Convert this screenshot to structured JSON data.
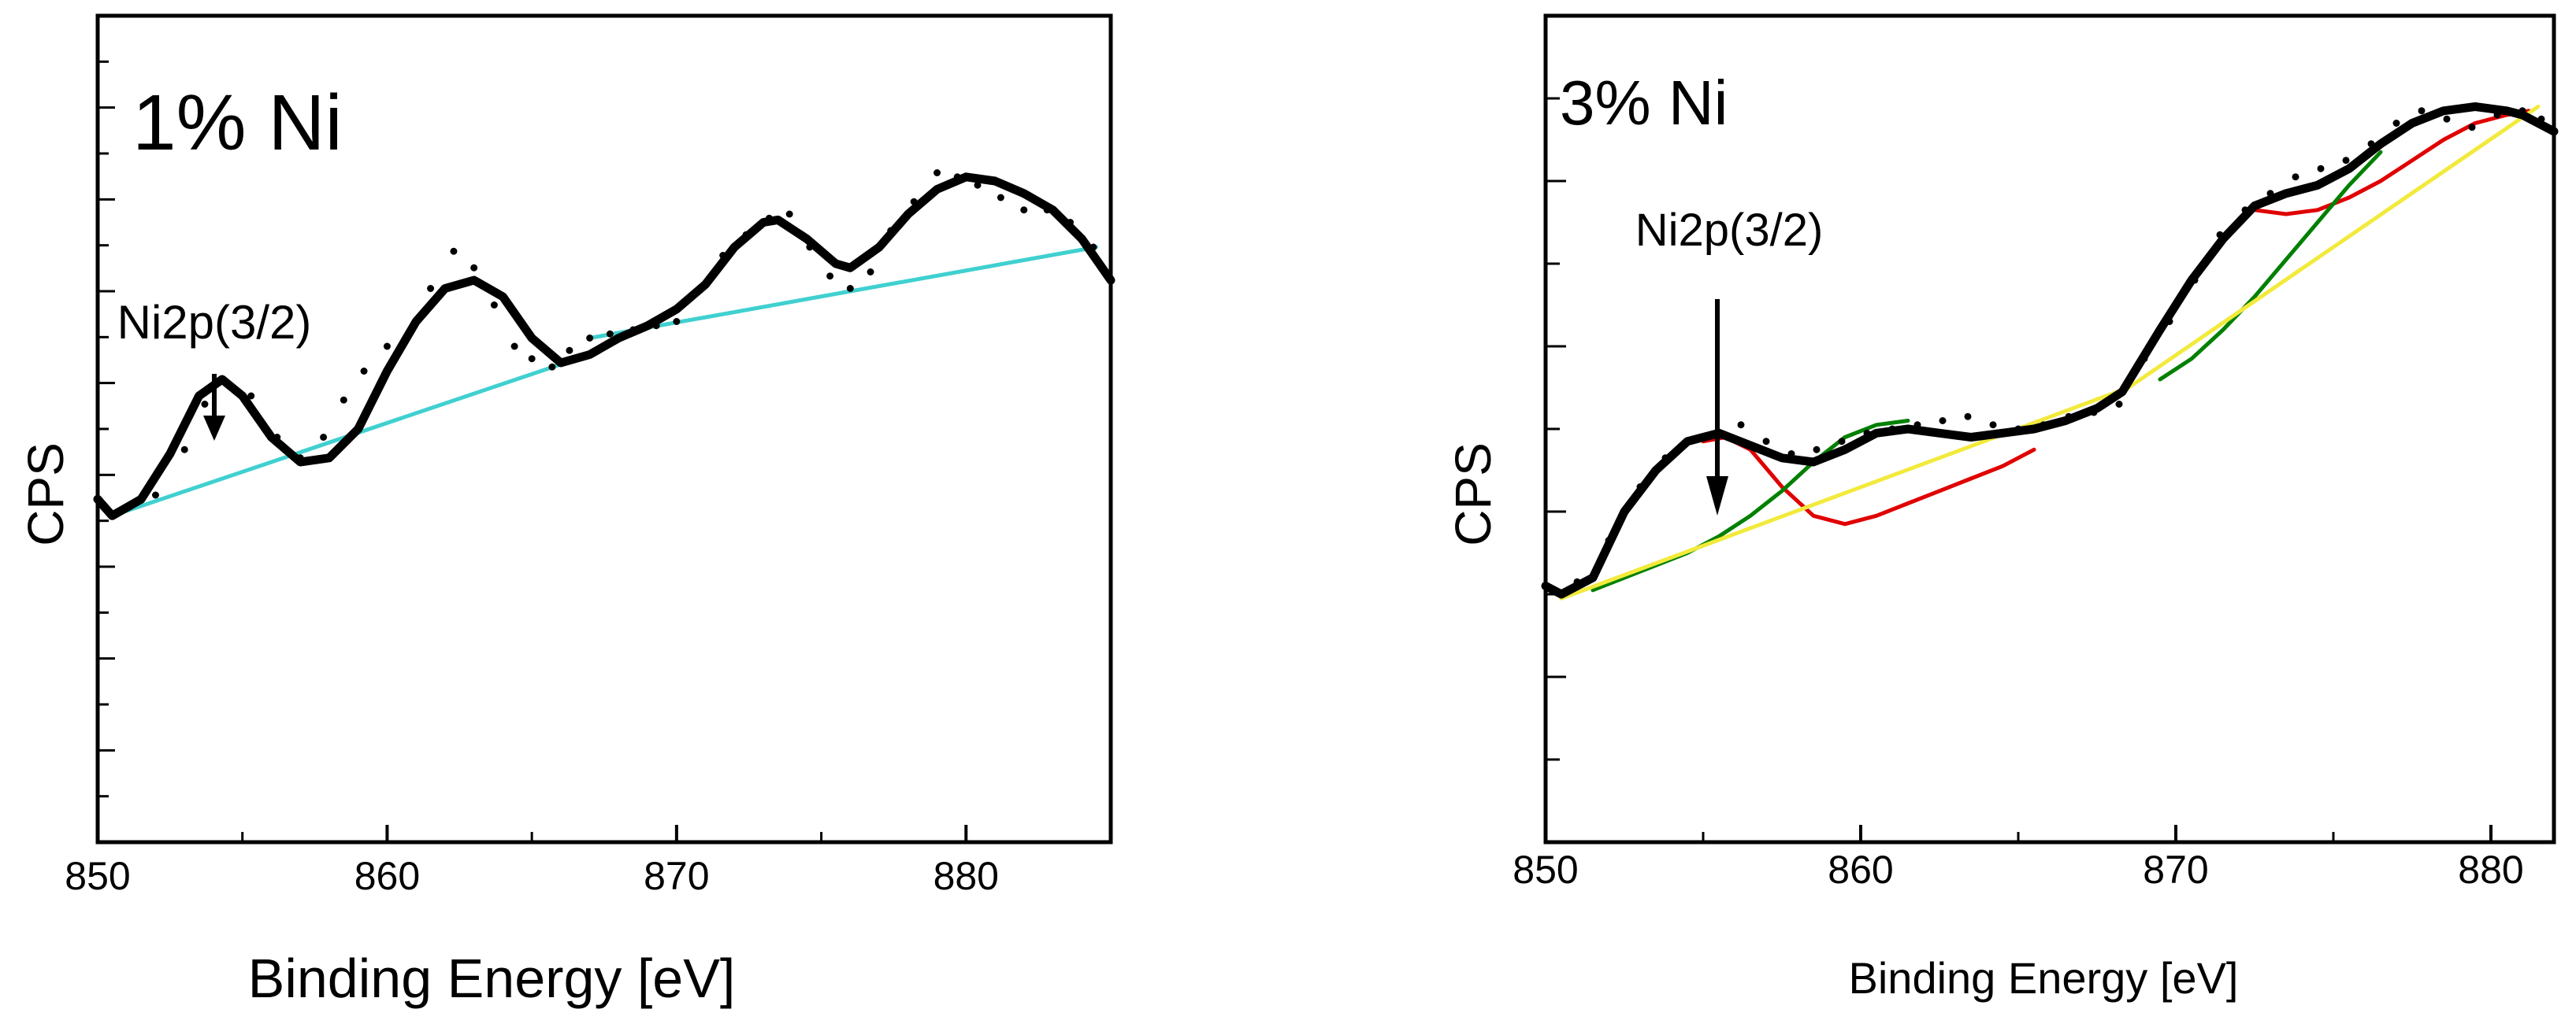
{
  "chart_data": [
    {
      "type": "line",
      "title": "1% Ni",
      "xlabel": "Binding Energy [eV]",
      "ylabel": "CPS",
      "xlim": [
        850,
        885
      ],
      "ylim": [
        0,
        100
      ],
      "xticks": [
        850,
        860,
        870,
        880
      ],
      "xtick_labels": [
        "850",
        "860",
        "870",
        "880"
      ],
      "annotation": {
        "text": "Ni2p(3/2)",
        "x": 854.0,
        "y": 56
      },
      "series": [
        {
          "name": "fit envelope",
          "color": "#000000",
          "x": [
            850.0,
            850.5,
            851.5,
            852.5,
            853.5,
            854.3,
            855.0,
            856.0,
            857.0,
            858.0,
            859.0,
            860.0,
            861.0,
            862.0,
            863.0,
            864.0,
            865.0,
            866.0,
            867.0,
            868.0,
            869.0,
            870.0,
            871.0,
            872.0,
            873.0,
            873.5,
            874.5,
            875.5,
            876.0,
            877.0,
            878.0,
            879.0,
            880.0,
            881.0,
            882.0,
            883.0,
            884.0,
            885.0
          ],
          "y": [
            41.5,
            39.5,
            41.5,
            47.0,
            54.0,
            56.0,
            54.0,
            49.0,
            46.0,
            46.5,
            50.0,
            57.0,
            63.0,
            67.0,
            68.0,
            66.0,
            61.0,
            58.0,
            59.0,
            61.0,
            62.5,
            64.5,
            67.5,
            72.0,
            75.0,
            75.3,
            73.0,
            70.0,
            69.5,
            72.0,
            76.0,
            79.0,
            80.5,
            80.0,
            78.5,
            76.5,
            73.0,
            68.0
          ]
        },
        {
          "name": "measured data",
          "color": "#000000",
          "x": [
            851.0,
            852.0,
            853.0,
            853.7,
            854.5,
            855.3,
            856.2,
            857.0,
            857.8,
            858.5,
            859.2,
            860.0,
            860.7,
            861.5,
            862.3,
            863.0,
            863.7,
            864.4,
            865.0,
            865.7,
            866.3,
            867.0,
            867.7,
            868.5,
            869.3,
            870.0,
            870.8,
            871.6,
            872.4,
            873.2,
            873.9,
            874.6,
            875.3,
            876.0,
            876.7,
            877.4,
            878.2,
            879.0,
            879.7,
            880.4,
            881.2,
            882.0,
            882.8,
            883.6,
            884.4
          ],
          "y": [
            40.5,
            42.0,
            47.5,
            53.0,
            55.5,
            54.0,
            49.0,
            46.5,
            49.0,
            53.5,
            57.0,
            60.0,
            61.0,
            67.0,
            71.5,
            69.5,
            65.0,
            60.0,
            58.5,
            57.5,
            59.5,
            61.0,
            61.5,
            62.0,
            62.5,
            63.0,
            67.0,
            71.0,
            73.5,
            75.5,
            76.0,
            72.0,
            68.5,
            67.0,
            69.0,
            74.0,
            77.5,
            81.0,
            80.5,
            79.5,
            78.0,
            76.5,
            76.5,
            75.0,
            72.0
          ]
        },
        {
          "name": "background (low BE)",
          "color": "#40d0d0",
          "x": [
            850.5,
            867.0
          ],
          "y": [
            39.5,
            59.0
          ]
        },
        {
          "name": "background (high BE)",
          "color": "#40d0d0",
          "x": [
            867.0,
            884.5
          ],
          "y": [
            61.0,
            72.0
          ]
        }
      ]
    },
    {
      "type": "line",
      "title": "3% Ni",
      "xlabel": "Binding Energy [eV]",
      "ylabel": "CPS",
      "xlim": [
        850,
        882
      ],
      "ylim": [
        0,
        100
      ],
      "xticks": [
        850,
        860,
        870,
        880
      ],
      "xtick_labels": [
        "850",
        "860",
        "870",
        "880"
      ],
      "annotation": {
        "text": "Ni2p(3/2)",
        "x": 855.5,
        "y": 51
      },
      "series": [
        {
          "name": "fit envelope",
          "color": "#000000",
          "x": [
            850.0,
            850.5,
            851.5,
            852.5,
            853.5,
            854.5,
            855.5,
            856.5,
            857.5,
            858.5,
            859.5,
            860.5,
            861.5,
            862.5,
            863.5,
            864.5,
            865.5,
            866.5,
            867.5,
            868.3,
            868.7,
            869.5,
            870.5,
            871.5,
            872.5,
            873.5,
            874.5,
            875.5,
            876.5,
            877.5,
            878.5,
            879.5,
            880.5,
            881.0,
            881.5,
            882.0
          ],
          "y": [
            31.0,
            30.0,
            32.0,
            40.0,
            45.0,
            48.5,
            49.5,
            48.0,
            46.5,
            46.0,
            47.5,
            49.5,
            50.0,
            49.5,
            49.0,
            49.5,
            50.0,
            51.0,
            52.5,
            54.5,
            57.0,
            62.0,
            68.0,
            73.0,
            77.0,
            78.5,
            79.5,
            81.5,
            84.5,
            87.0,
            88.5,
            89.0,
            88.5,
            88.0,
            87.0,
            86.0
          ]
        },
        {
          "name": "measured data",
          "color": "#000000",
          "x": [
            851.0,
            852.0,
            853.0,
            853.8,
            854.6,
            855.4,
            856.2,
            857.0,
            857.8,
            858.6,
            859.4,
            860.2,
            861.0,
            861.8,
            862.6,
            863.4,
            864.2,
            865.0,
            865.8,
            866.6,
            867.4,
            868.2,
            869.0,
            869.8,
            870.6,
            871.4,
            872.2,
            873.0,
            873.8,
            874.6,
            875.4,
            876.2,
            877.0,
            877.8,
            878.6,
            879.4,
            880.2,
            881.0,
            881.6
          ],
          "y": [
            31.5,
            36.5,
            43.0,
            46.5,
            48.5,
            49.5,
            50.5,
            48.5,
            47.0,
            47.5,
            48.5,
            49.5,
            50.0,
            50.5,
            51.0,
            51.5,
            50.5,
            50.0,
            50.5,
            51.5,
            52.0,
            53.0,
            58.5,
            63.0,
            68.0,
            73.5,
            76.5,
            78.5,
            80.5,
            81.5,
            82.5,
            84.5,
            87.0,
            88.5,
            87.5,
            86.5,
            88.0,
            88.5,
            87.5
          ]
        },
        {
          "name": "component peak (red)",
          "color": "#e00000",
          "x": [
            855.0,
            855.7,
            856.5,
            857.5,
            858.5,
            859.5,
            860.5,
            861.5,
            862.5,
            863.5,
            864.5,
            865.5
          ],
          "y": [
            48.5,
            49.0,
            47.5,
            43.0,
            39.5,
            38.5,
            39.5,
            41.0,
            42.5,
            44.0,
            45.5,
            47.5
          ]
        },
        {
          "name": "component peak (red, high BE)",
          "color": "#e00000",
          "x": [
            872.5,
            873.5,
            874.5,
            875.5,
            876.5,
            877.5,
            878.5,
            879.5,
            880.5,
            881.2
          ],
          "y": [
            76.5,
            76.0,
            76.5,
            78.0,
            80.0,
            82.5,
            85.0,
            87.0,
            88.0,
            88.5
          ]
        },
        {
          "name": "component peak (green)",
          "color": "#008000",
          "x": [
            851.5,
            852.5,
            853.5,
            854.5,
            855.5,
            856.5,
            857.5,
            858.5,
            859.5,
            860.5,
            861.5
          ],
          "y": [
            30.5,
            32.0,
            33.5,
            35.0,
            37.0,
            39.5,
            42.5,
            46.0,
            49.0,
            50.5,
            51.0
          ]
        },
        {
          "name": "component peak (green, high BE)",
          "color": "#008000",
          "x": [
            869.5,
            870.5,
            871.5,
            872.5,
            873.5,
            874.5,
            875.5,
            876.5
          ],
          "y": [
            56.0,
            58.5,
            62.0,
            66.0,
            70.5,
            75.0,
            79.5,
            83.5
          ]
        },
        {
          "name": "background (yellow)",
          "color": "#f2ea3c",
          "x": [
            850.5,
            868.5
          ],
          "y": [
            29.5,
            55.0
          ]
        },
        {
          "name": "background (yellow, high BE)",
          "color": "#f2ea3c",
          "x": [
            868.5,
            881.5
          ],
          "y": [
            55.0,
            89.0
          ]
        }
      ]
    }
  ]
}
